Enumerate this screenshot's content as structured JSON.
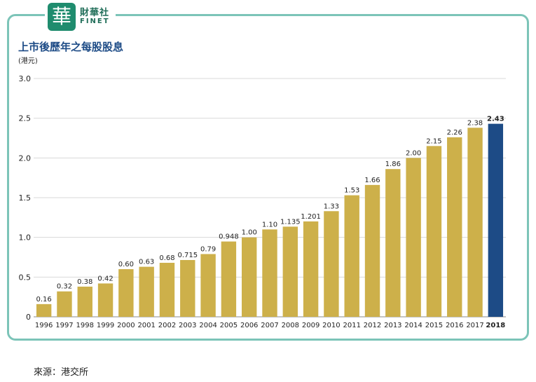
{
  "brand": {
    "mark": "華",
    "name_cn": "財華社",
    "name_en": "FINET"
  },
  "chart_data": {
    "type": "bar",
    "title": "上市後歷年之每股股息",
    "ylabel": "(港元)",
    "ylim": [
      0,
      3.0
    ],
    "yticks": [
      "0",
      "0.5",
      "1.0",
      "1.5",
      "2.0",
      "2.5",
      "3.0"
    ],
    "grid": true,
    "categories": [
      "1996",
      "1997",
      "1998",
      "1999",
      "2000",
      "2001",
      "2002",
      "2003",
      "2004",
      "2005",
      "2006",
      "2007",
      "2008",
      "2009",
      "2010",
      "2011",
      "2012",
      "2013",
      "2014",
      "2015",
      "2016",
      "2017",
      "2018"
    ],
    "values": [
      0.16,
      0.32,
      0.38,
      0.42,
      0.6,
      0.63,
      0.68,
      0.715,
      0.79,
      0.948,
      1.0,
      1.1,
      1.135,
      1.201,
      1.33,
      1.53,
      1.66,
      1.86,
      2.0,
      2.15,
      2.26,
      2.38,
      2.43
    ],
    "value_labels": [
      "0.16",
      "0.32",
      "0.38",
      "0.42",
      "0.60",
      "0.63",
      "0.68",
      "0.715",
      "0.79",
      "0.948",
      "1.00",
      "1.10",
      "1.135",
      "1.201",
      "1.33",
      "1.53",
      "1.66",
      "1.86",
      "2.00",
      "2.15",
      "2.26",
      "2.38",
      "2.43"
    ],
    "colors": {
      "bar": "#cdb04a",
      "highlight": "#1d4b86",
      "grid": "#d9d9d9"
    },
    "highlight_category": "2018"
  },
  "source_note": "來源：港交所"
}
